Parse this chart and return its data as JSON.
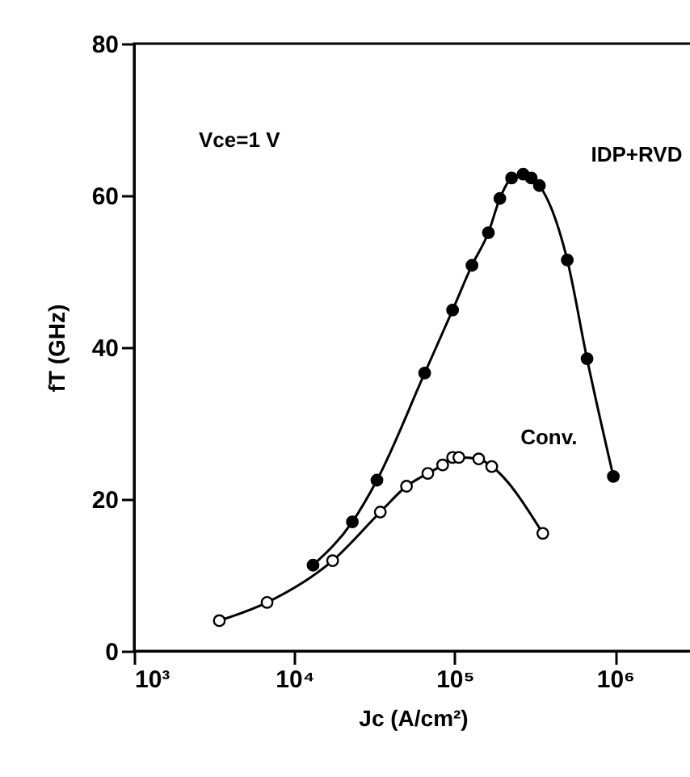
{
  "chart_data": {
    "type": "line",
    "xlabel": "Jc (A/cm²)",
    "ylabel": "fT (GHz)",
    "annotations": [
      "Vce=1 V"
    ],
    "log": "x",
    "xlim": [
      1000,
      3000000
    ],
    "xticks": [
      {
        "value": 1000,
        "label": "10³"
      },
      {
        "value": 10000,
        "label": "10⁴"
      },
      {
        "value": 100000,
        "label": "10⁵"
      },
      {
        "value": 1000000,
        "label": "10⁶"
      }
    ],
    "ylim": [
      0,
      80
    ],
    "yticks": [
      0,
      20,
      40,
      60,
      80
    ],
    "grid": false,
    "marker": "circle",
    "legend": false,
    "series": [
      {
        "name": "IDP+RVD",
        "color": "#000000",
        "x": [
          13060,
          22970,
          32700,
          64900,
          96900,
          128000,
          162000,
          191000,
          226000,
          267000,
          300000,
          337000,
          503000,
          668000,
          975000
        ],
        "values": [
          11.3,
          17.0,
          22.5,
          36.6,
          44.9,
          50.8,
          55.1,
          59.6,
          62.3,
          62.8,
          62.3,
          61.3,
          51.5,
          38.5,
          23.0
        ]
      },
      {
        "name": "Conv.",
        "color": "#000000",
        "x": [
          3400,
          6750,
          17300,
          34300,
          50000,
          67900,
          84000,
          96900,
          106000,
          141000,
          170000,
          354000
        ],
        "values": [
          4.0,
          6.4,
          11.9,
          18.3,
          21.7,
          23.4,
          24.5,
          25.5,
          25.5,
          25.3,
          24.3,
          15.5
        ]
      }
    ]
  }
}
